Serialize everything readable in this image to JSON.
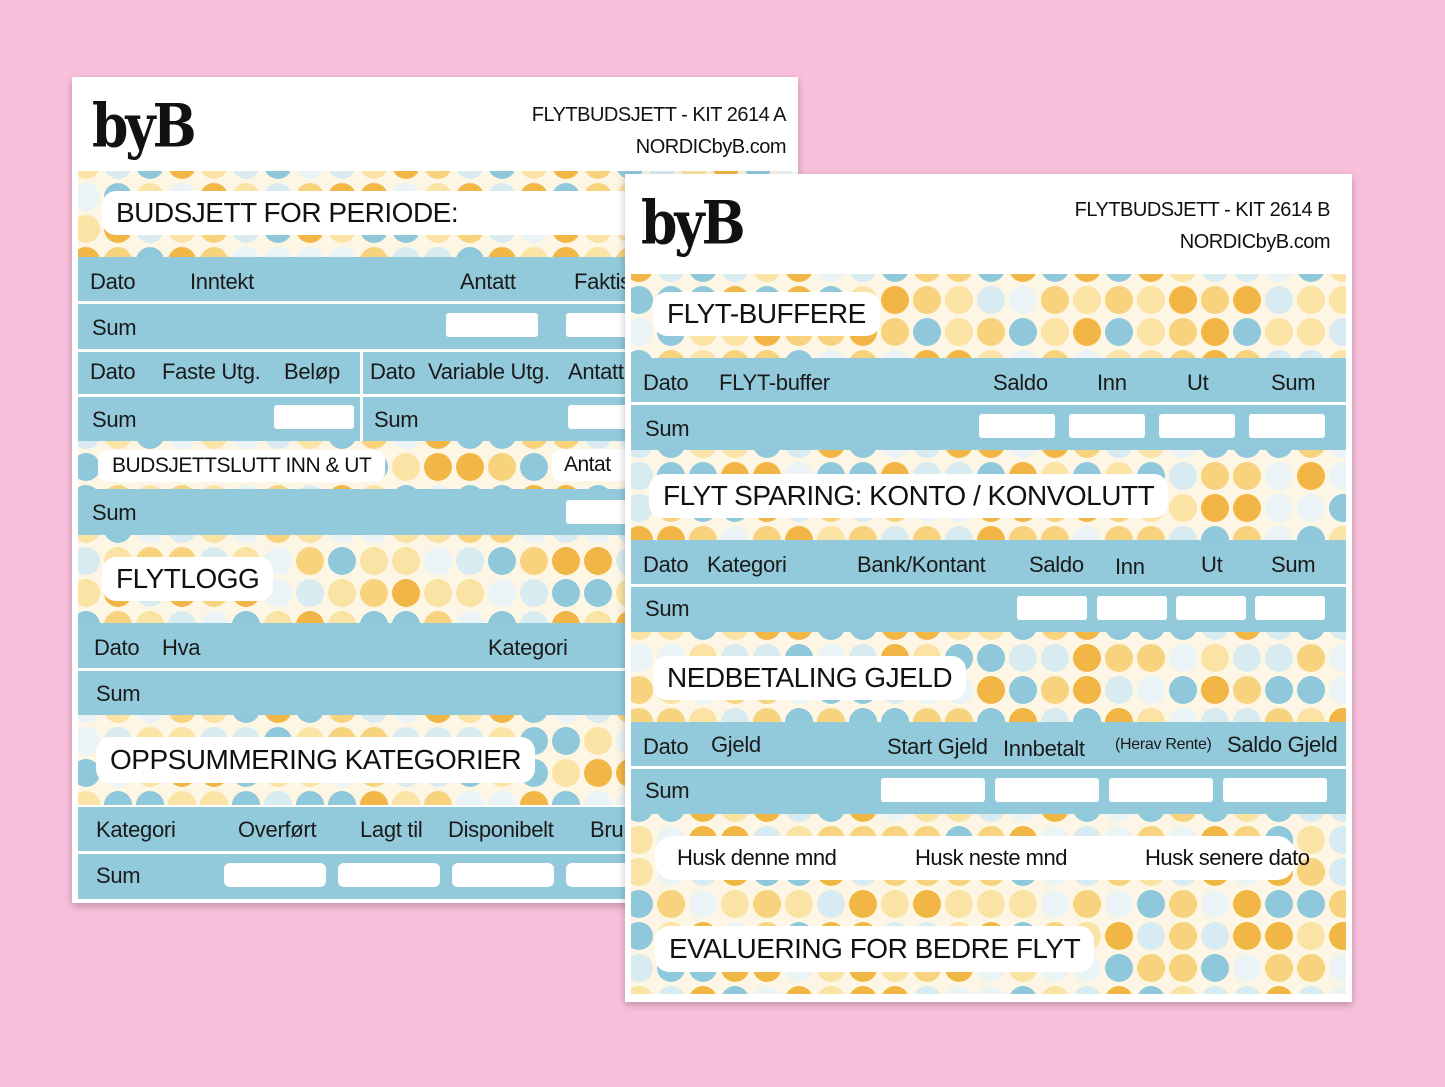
{
  "sheetA": {
    "logo": "byB",
    "kit": "FLYTBUDSJETT - KIT 2614 A",
    "site": "NORDICbyB.com",
    "budget_title": "BUDSJETT FOR PERIODE:",
    "income_header": [
      "Dato",
      "Inntekt",
      "Antatt",
      "Faktis"
    ],
    "sum": "Sum",
    "fixed_header": [
      "Dato",
      "Faste Utg.",
      "Beløp"
    ],
    "variable_header": [
      "Dato",
      "Variable Utg.",
      "Antatt"
    ],
    "closing_title": "BUDSJETTSLUTT INN & UT",
    "closing_antatt": "Antat",
    "log_title": "FLYTLOGG",
    "log_header": [
      "Dato",
      "Hva",
      "Kategori"
    ],
    "summary_title": "OPPSUMMERING KATEGORIER",
    "summary_header": [
      "Kategori",
      "Overført",
      "Lagt til",
      "Disponibelt",
      "Bru"
    ]
  },
  "sheetB": {
    "logo": "byB",
    "kit": "FLYTBUDSJETT - KIT 2614 B",
    "site": "NORDICbyB.com",
    "buffer_title": "FLYT-BUFFERE",
    "buffer_header": [
      "Dato",
      "FLYT-buffer",
      "Saldo",
      "Inn",
      "Ut",
      "Sum"
    ],
    "sum": "Sum",
    "saving_title": "FLYT SPARING: KONTO / KONVOLUTT",
    "saving_header": [
      "Dato",
      "Kategori",
      "Bank/Kontant",
      "Saldo",
      "Inn",
      "Ut",
      "Sum"
    ],
    "debt_title": "NEDBETALING GJELD",
    "debt_header": [
      "Dato",
      "Gjeld",
      "Start Gjeld",
      "Innbetalt",
      "(Herav Rente)",
      "Saldo Gjeld"
    ],
    "reminders": [
      "Husk denne mnd",
      "Husk neste mnd",
      "Husk senere dato"
    ],
    "eval_title": "EVALUERING FOR BEDRE FLYT"
  },
  "colors": {
    "background": "#f9c0dc",
    "row": "#93cadb",
    "dot_blue": "#8ec8da",
    "dot_yellow": "#f1b646",
    "dot_light": "#fbe3a6"
  }
}
